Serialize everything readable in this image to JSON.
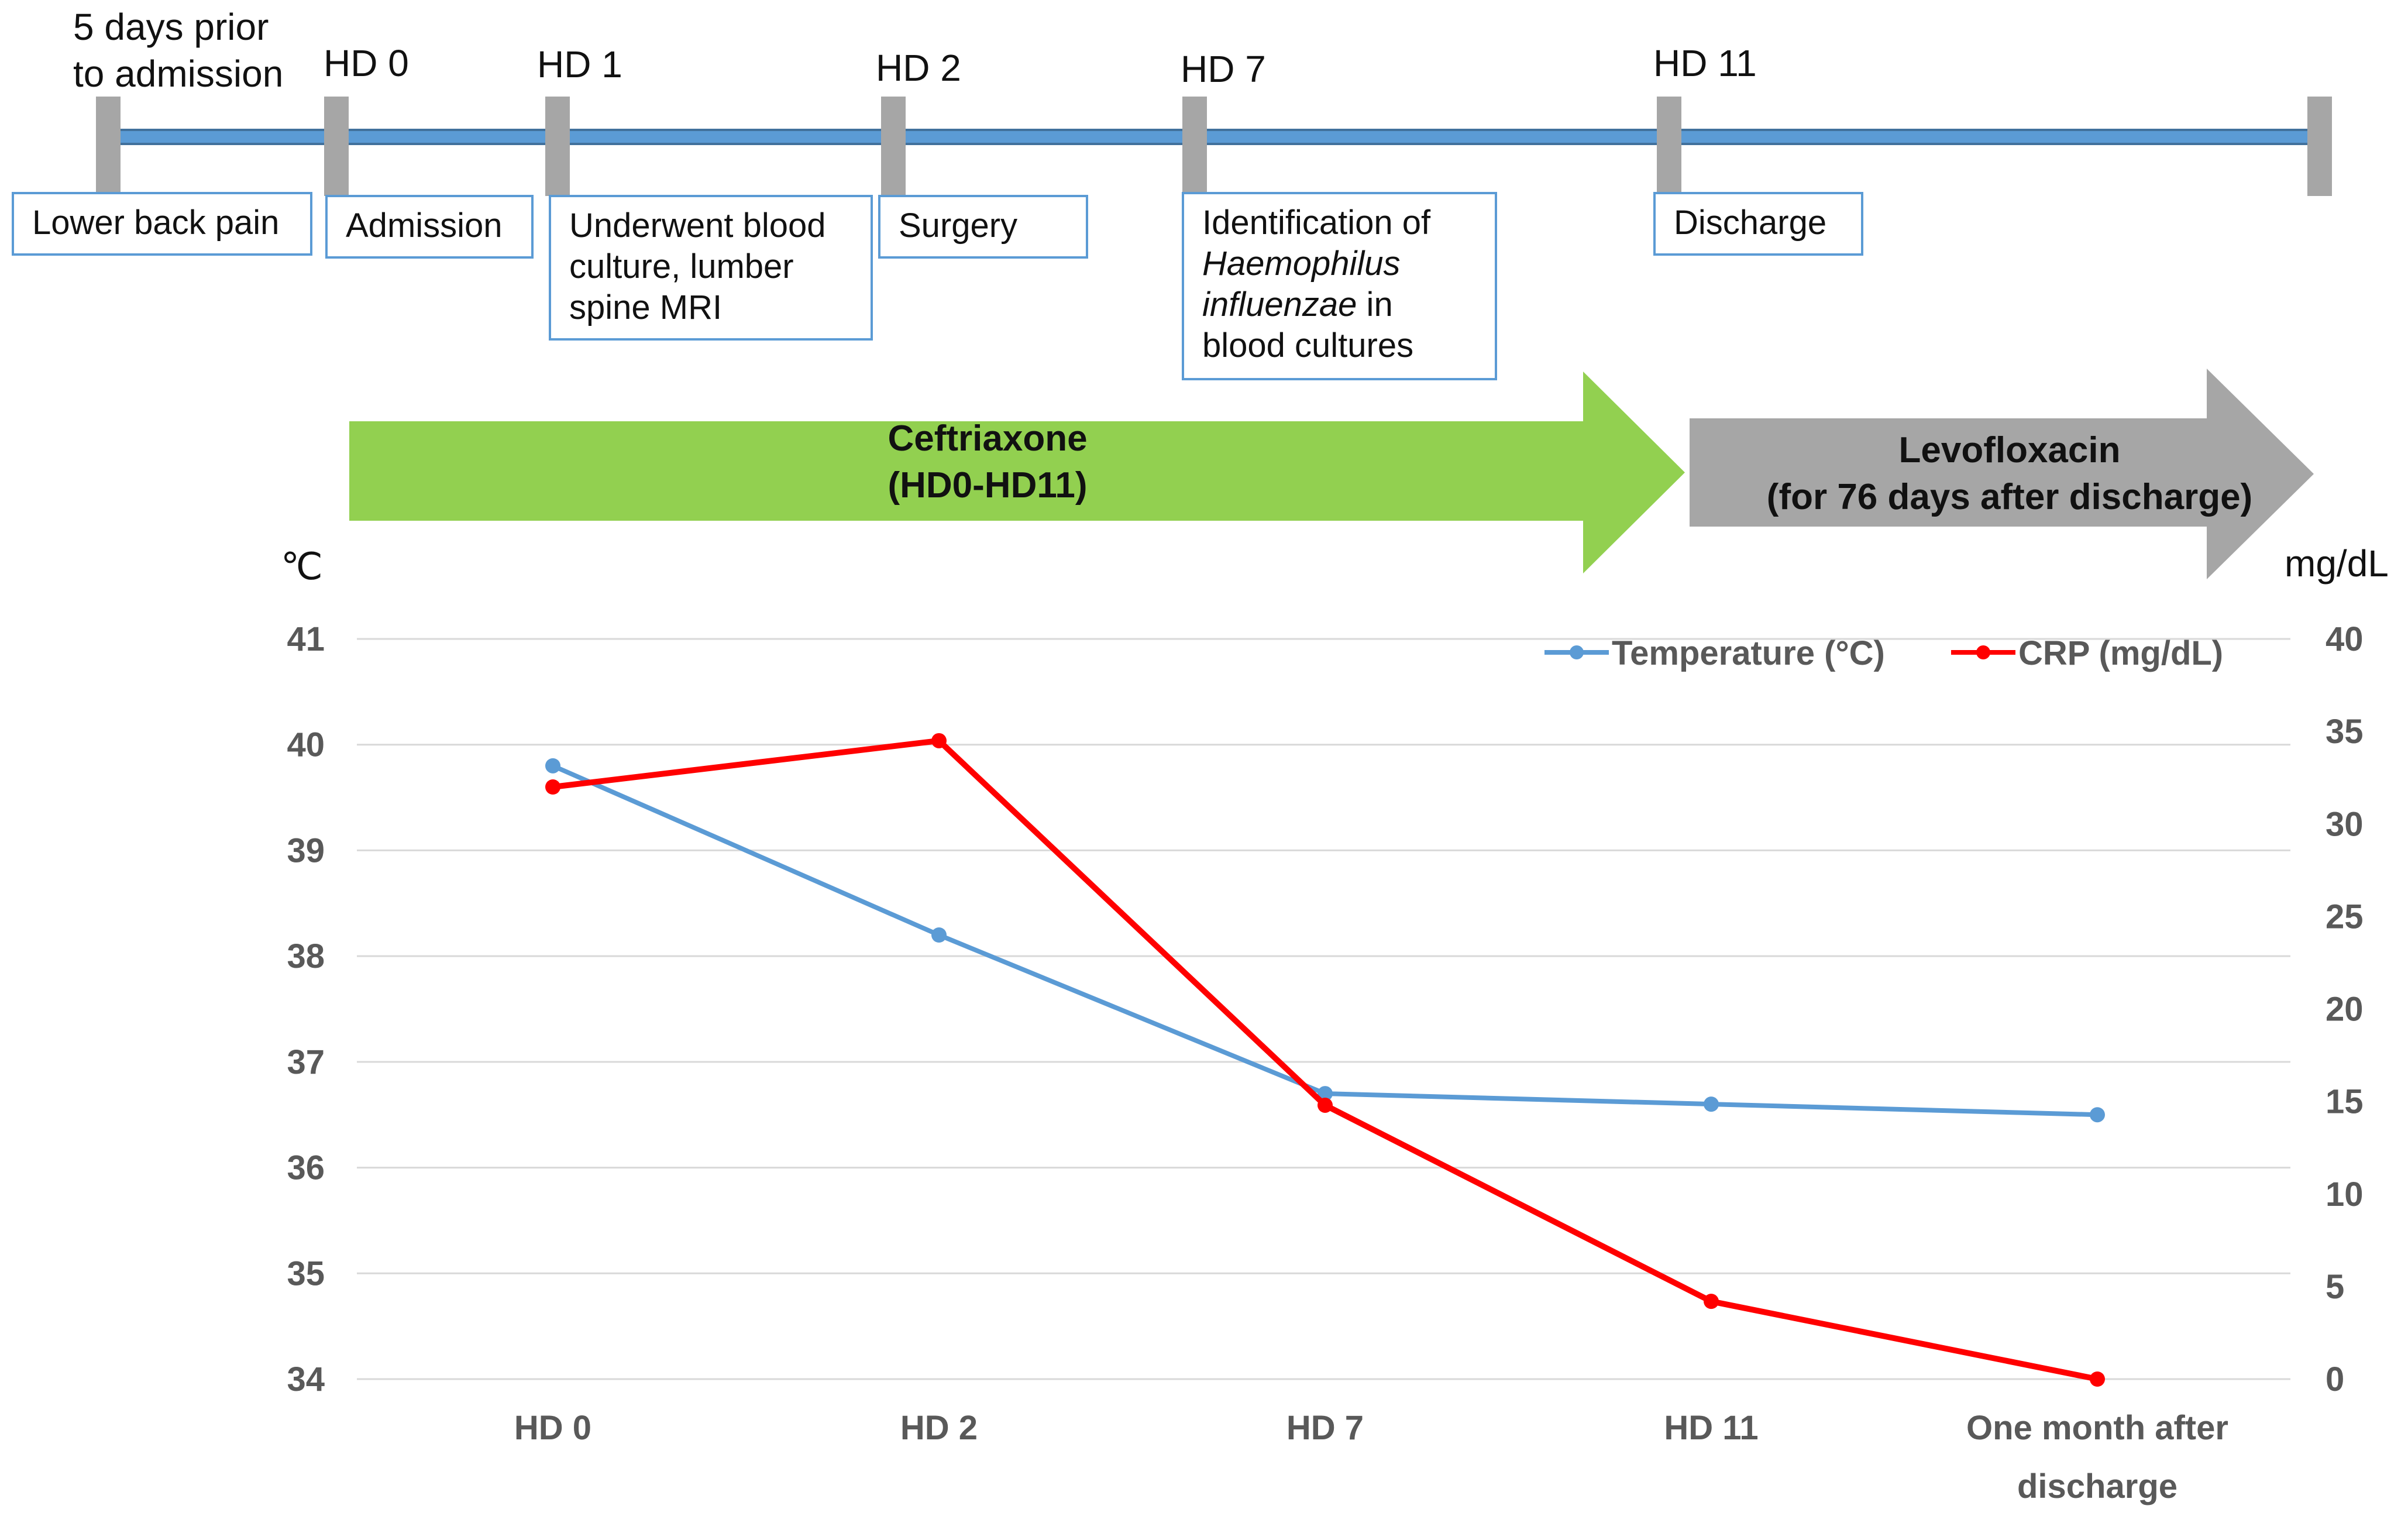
{
  "timeline": {
    "markers": [
      {
        "top": "5 days prior",
        "bottom": "to admission",
        "label_lines": [
          "Lower back pain"
        ]
      },
      {
        "top": "HD 0",
        "label_lines": [
          "Admission"
        ]
      },
      {
        "top": "HD 1",
        "label_lines": [
          "Underwent blood",
          "culture, lumber",
          "spine MRI"
        ]
      },
      {
        "top": "HD 2",
        "label_lines": [
          "Surgery"
        ]
      },
      {
        "top": "HD 7",
        "label_lines": [
          "Identification of",
          "Haemophilus",
          "influenzae in",
          "blood cultures"
        ]
      },
      {
        "top": "HD 11",
        "label_lines": [
          "Discharge"
        ]
      }
    ]
  },
  "treatments": [
    {
      "name": "Ceftriaxone",
      "period": "(HD0-HD11)",
      "color": "#92d050"
    },
    {
      "name": "Levofloxacin",
      "period": "(for 76 days after discharge)",
      "color": "#a6a6a6"
    }
  ],
  "chart_data": {
    "type": "line",
    "categories": [
      "HD 0",
      "HD 2",
      "HD 7",
      "HD 11",
      "One month after discharge"
    ],
    "category_lines": [
      [
        "HD 0"
      ],
      [
        "HD 2"
      ],
      [
        "HD 7"
      ],
      [
        "HD 11"
      ],
      [
        "One month after",
        "discharge"
      ]
    ],
    "y_left_unit": "℃",
    "y_right_unit": "mg/dL",
    "y_left_ticks": [
      34,
      35,
      36,
      37,
      38,
      39,
      40,
      41
    ],
    "y_right_ticks": [
      0,
      5,
      10,
      15,
      20,
      25,
      30,
      35,
      40
    ],
    "ylim_left": [
      34,
      41
    ],
    "ylim_right": [
      0,
      40
    ],
    "grid": true,
    "legend_position": "top-right",
    "series": [
      {
        "name": "Temperature (°C)",
        "axis": "left",
        "color": "#5b9bd5",
        "values": [
          39.8,
          38.2,
          36.7,
          36.6,
          36.5
        ]
      },
      {
        "name": "CRP (mg/dL)",
        "axis": "right",
        "color": "#ff0000",
        "values": [
          32,
          34.5,
          14.8,
          4.2,
          0
        ]
      }
    ]
  }
}
